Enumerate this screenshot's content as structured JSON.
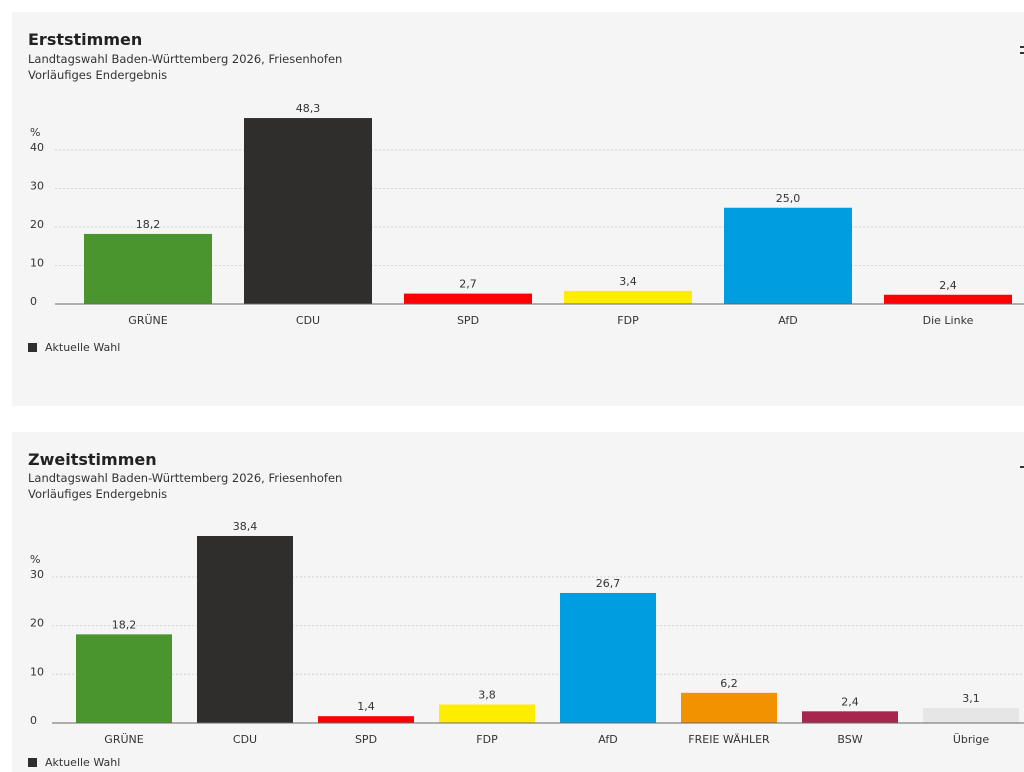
{
  "chart_data": [
    {
      "type": "bar",
      "title": "Erststimmen",
      "subtitle": "Landtagswahl Baden-Württemberg 2026, Friesenhofen",
      "subtitle2": "Vorläufiges Endergebnis",
      "ylabel": "%",
      "ylim": [
        0,
        50
      ],
      "yticks": [
        "0",
        "10",
        "20",
        "30",
        "40"
      ],
      "grid": true,
      "categories": [
        "GRÜNE",
        "CDU",
        "SPD",
        "FDP",
        "AfD",
        "Die Linke"
      ],
      "values": [
        18.2,
        48.3,
        2.7,
        3.4,
        25.0,
        2.4
      ],
      "labels": [
        "18,2",
        "48,3",
        "2,7",
        "3,4",
        "25,0",
        "2,4"
      ],
      "colors": [
        "#4a952e",
        "#302e2c",
        "#ff0000",
        "#ffed00",
        "#009ee0",
        "#ff0000"
      ],
      "legend": "Aktuelle Wahl",
      "legend_position": "bottom-left"
    },
    {
      "type": "bar",
      "title": "Zweitstimmen",
      "subtitle": "Landtagswahl Baden-Württemberg 2026, Friesenhofen",
      "subtitle2": "Vorläufiges Endergebnis",
      "ylabel": "%",
      "ylim": [
        0,
        40
      ],
      "yticks": [
        "0",
        "10",
        "20",
        "30"
      ],
      "grid": true,
      "categories": [
        "GRÜNE",
        "CDU",
        "SPD",
        "FDP",
        "AfD",
        "FREIE WÄHLER",
        "BSW",
        "Übrige"
      ],
      "values": [
        18.2,
        38.4,
        1.4,
        3.8,
        26.7,
        6.2,
        2.4,
        3.1
      ],
      "labels": [
        "18,2",
        "38,4",
        "1,4",
        "3,8",
        "26,7",
        "6,2",
        "2,4",
        "3,1"
      ],
      "colors": [
        "#4a952e",
        "#302e2c",
        "#ff0000",
        "#ffed00",
        "#009ee0",
        "#f39200",
        "#a8254d",
        "#e6e6e6"
      ],
      "legend": "Aktuelle Wahl",
      "legend_position": "bottom-left"
    }
  ]
}
